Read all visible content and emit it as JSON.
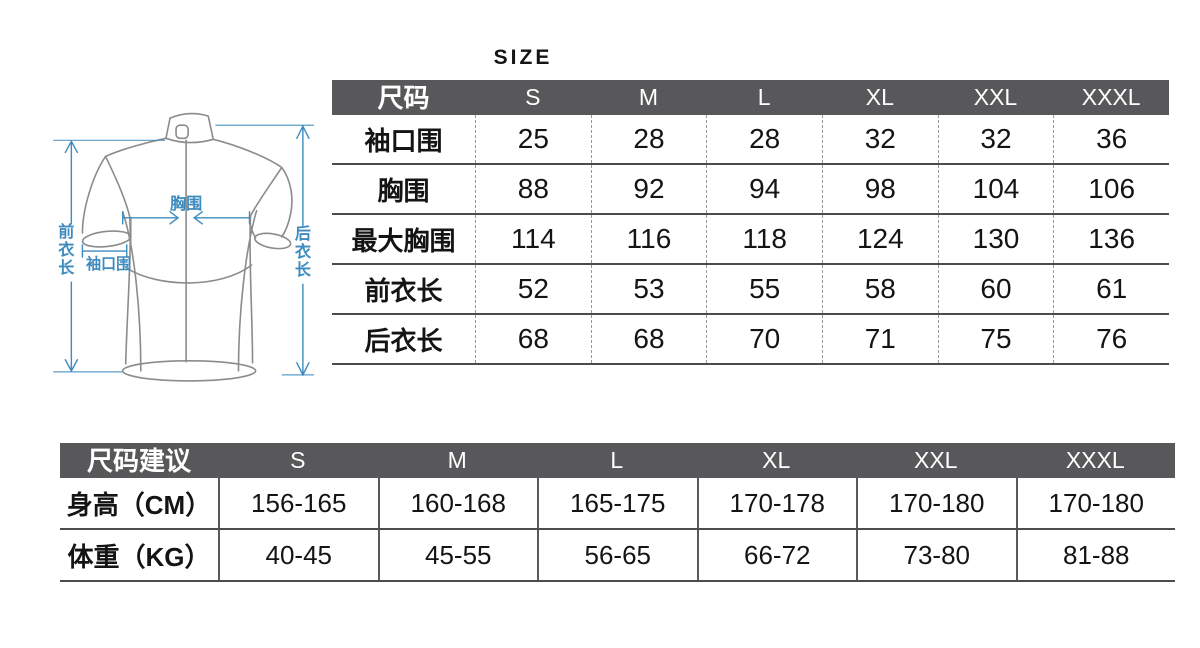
{
  "colors": {
    "header_bg": "#58585a",
    "header_text": "#ffffff",
    "body_text": "#141414",
    "line": "#4c4c4c",
    "dashed_line": "#979797",
    "solid_divider": "#5a5a5a",
    "outline": "#8c8c8c",
    "accent": "#3e8cbf"
  },
  "size_title": "SIZE",
  "diagram": {
    "chest_label": "胸围",
    "cuff_label": "袖口围",
    "front_length_chars": [
      "前",
      "衣",
      "长"
    ],
    "back_length_chars": [
      "后",
      "衣",
      "长"
    ]
  },
  "size_table": {
    "header": [
      "尺码",
      "S",
      "M",
      "L",
      "XL",
      "XXL",
      "XXXL"
    ],
    "rows": [
      {
        "label": "袖口围",
        "values": [
          "25",
          "28",
          "28",
          "32",
          "32",
          "36"
        ]
      },
      {
        "label": "胸围",
        "values": [
          "88",
          "92",
          "94",
          "98",
          "104",
          "106"
        ]
      },
      {
        "label": "最大胸围",
        "values": [
          "114",
          "116",
          "118",
          "124",
          "130",
          "136"
        ]
      },
      {
        "label": "前衣长",
        "values": [
          "52",
          "53",
          "55",
          "58",
          "60",
          "61"
        ]
      },
      {
        "label": "后衣长",
        "values": [
          "68",
          "68",
          "70",
          "71",
          "75",
          "76"
        ]
      }
    ]
  },
  "suggestion_table": {
    "header": [
      "尺码建议",
      "S",
      "M",
      "L",
      "XL",
      "XXL",
      "XXXL"
    ],
    "rows": [
      {
        "label": "身高（CM）",
        "values": [
          "156-165",
          "160-168",
          "165-175",
          "170-178",
          "170-180",
          "170-180"
        ]
      },
      {
        "label": "体重（KG）",
        "values": [
          "40-45",
          "45-55",
          "56-65",
          "66-72",
          "73-80",
          "81-88"
        ]
      }
    ]
  }
}
